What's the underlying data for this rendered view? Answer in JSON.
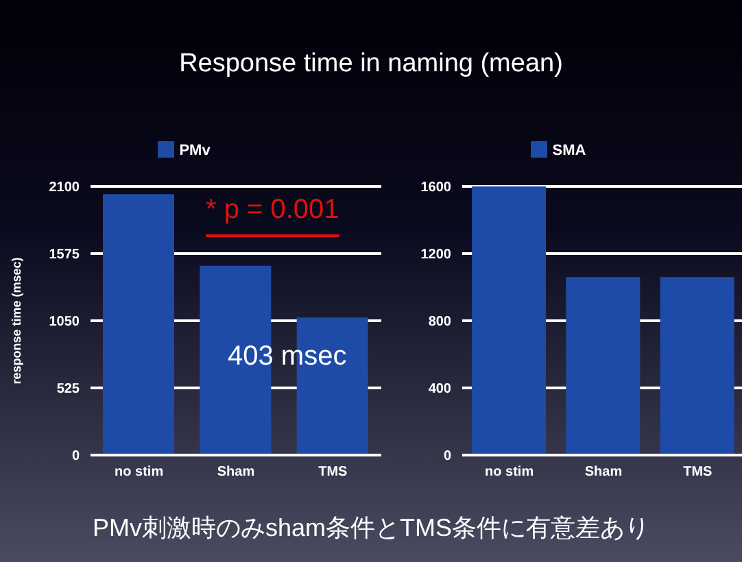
{
  "chart_data": [
    {
      "type": "bar",
      "title": "Response time in naming (mean)",
      "ylabel": "response time (msec)",
      "categories": [
        "no stim",
        "Sham",
        "TMS"
      ],
      "series": [
        {
          "name": "PMv",
          "color": "#1e4aa8",
          "values": [
            2040,
            1480,
            1075
          ]
        }
      ],
      "ylim": [
        0,
        2100
      ],
      "yticks": [
        0,
        525,
        1050,
        1575,
        2100
      ],
      "grid": "y",
      "legend": "top",
      "annotations": [
        "* p = 0.001",
        "403 msec",
        "PMv刺激時のみsham条件とTMS条件に有意差あり"
      ]
    },
    {
      "type": "bar",
      "categories": [
        "no stim",
        "Sham",
        "TMS"
      ],
      "series": [
        {
          "name": "SMA",
          "color": "#1e4aa8",
          "values": [
            1600,
            1060,
            1060
          ]
        }
      ],
      "ylim": [
        0,
        1600
      ],
      "yticks": [
        0,
        400,
        800,
        1200,
        1600
      ],
      "grid": "y",
      "legend": "top"
    }
  ]
}
